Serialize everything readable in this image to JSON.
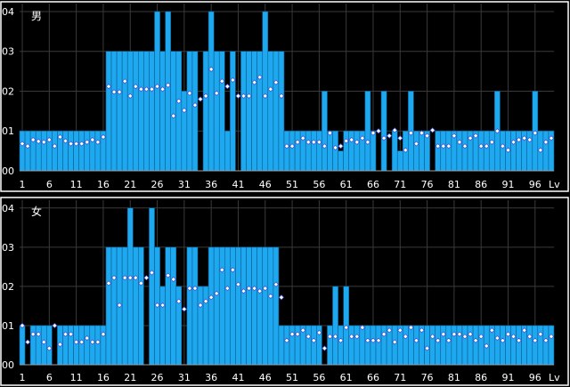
{
  "chart_data": [
    {
      "type": "bar",
      "title": "男",
      "x": [
        1,
        2,
        3,
        4,
        5,
        6,
        7,
        8,
        9,
        10,
        11,
        12,
        13,
        14,
        15,
        16,
        17,
        18,
        19,
        20,
        21,
        22,
        23,
        24,
        25,
        26,
        27,
        28,
        29,
        30,
        31,
        32,
        33,
        34,
        35,
        36,
        37,
        38,
        39,
        40,
        41,
        42,
        43,
        44,
        45,
        46,
        47,
        48,
        49,
        50,
        51,
        52,
        53,
        54,
        55,
        56,
        57,
        58,
        59,
        60,
        61,
        62,
        63,
        64,
        65,
        66,
        67,
        68,
        69,
        70,
        71,
        72,
        73,
        74,
        75,
        76,
        77,
        78,
        79,
        80,
        81,
        82,
        83,
        84,
        85,
        86,
        87,
        88,
        89,
        90,
        91,
        92,
        93,
        94,
        95,
        96,
        97,
        98,
        99
      ],
      "x_ticks": [
        1,
        6,
        11,
        16,
        21,
        26,
        31,
        36,
        41,
        46,
        51,
        56,
        61,
        66,
        71,
        76,
        81,
        86,
        91,
        96
      ],
      "x_unit": "Lv",
      "y_ticks": [
        "00",
        "01",
        "02",
        "03",
        "04"
      ],
      "ylim": [
        0,
        4.2
      ],
      "bar_values": [
        1,
        1,
        1,
        1,
        1,
        1,
        1,
        1,
        1,
        1,
        1,
        1,
        1,
        1,
        1,
        1,
        3,
        3,
        3,
        3,
        3,
        3,
        3,
        3,
        3,
        4,
        3,
        4,
        3,
        3,
        2,
        3,
        3,
        0,
        3,
        4,
        3,
        3,
        1,
        3,
        0,
        3,
        3,
        3,
        3,
        4,
        3,
        3,
        3,
        1,
        1,
        1,
        1,
        1,
        1,
        1,
        2,
        1,
        1,
        0.5,
        1,
        1,
        1,
        1,
        2,
        1,
        0,
        2,
        0,
        1,
        0.5,
        1,
        2,
        1,
        1,
        1,
        0,
        1,
        1,
        1,
        1,
        1,
        1,
        1,
        1,
        1,
        1,
        1,
        2,
        1,
        1,
        1,
        1,
        1,
        1,
        2,
        1,
        1,
        1
      ],
      "point_values": [
        0.68,
        0.62,
        0.78,
        0.74,
        0.72,
        0.78,
        0.62,
        0.85,
        0.75,
        0.68,
        0.68,
        0.68,
        0.72,
        0.78,
        0.72,
        0.85,
        2.12,
        1.98,
        1.98,
        2.25,
        1.88,
        2.12,
        2.05,
        2.05,
        2.05,
        2.12,
        2.05,
        2.15,
        1.38,
        1.75,
        1.52,
        1.95,
        1.65,
        1.8,
        1.88,
        2.55,
        1.95,
        2.25,
        2.12,
        2.28,
        1.88,
        1.88,
        1.88,
        2.22,
        2.35,
        1.88,
        2.05,
        2.22,
        1.88,
        0.62,
        0.62,
        0.72,
        0.82,
        0.72,
        0.72,
        0.72,
        0.62,
        0.95,
        0.58,
        0.62,
        0.75,
        0.78,
        0.72,
        0.82,
        0.72,
        0.95,
        1.0,
        0.82,
        0.88,
        1.02,
        0.82,
        0.52,
        0.95,
        0.68,
        0.95,
        0.88,
        1.02,
        0.62,
        0.62,
        0.62,
        0.88,
        0.72,
        0.62,
        0.82,
        0.88,
        0.62,
        0.62,
        0.72,
        1.0,
        0.62,
        0.52,
        0.72,
        0.78,
        0.82,
        0.78,
        0.95,
        0.52,
        0.72,
        0.82
      ]
    },
    {
      "type": "bar",
      "title": "女",
      "x": [
        1,
        2,
        3,
        4,
        5,
        6,
        7,
        8,
        9,
        10,
        11,
        12,
        13,
        14,
        15,
        16,
        17,
        18,
        19,
        20,
        21,
        22,
        23,
        24,
        25,
        26,
        27,
        28,
        29,
        30,
        31,
        32,
        33,
        34,
        35,
        36,
        37,
        38,
        39,
        40,
        41,
        42,
        43,
        44,
        45,
        46,
        47,
        48,
        49,
        50,
        51,
        52,
        53,
        54,
        55,
        56,
        57,
        58,
        59,
        60,
        61,
        62,
        63,
        64,
        65,
        66,
        67,
        68,
        69,
        70,
        71,
        72,
        73,
        74,
        75,
        76,
        77,
        78,
        79,
        80,
        81,
        82,
        83,
        84,
        85,
        86,
        87,
        88,
        89,
        90,
        91,
        92,
        93,
        94,
        95,
        96,
        97,
        98,
        99
      ],
      "x_ticks": [
        1,
        6,
        11,
        16,
        21,
        26,
        31,
        36,
        41,
        46,
        51,
        56,
        61,
        66,
        71,
        76,
        81,
        86,
        91,
        96
      ],
      "x_unit": "Lv",
      "y_ticks": [
        "00",
        "01",
        "02",
        "03",
        "04"
      ],
      "ylim": [
        0,
        4.2
      ],
      "bar_values": [
        1,
        0,
        1,
        1,
        1,
        1,
        0,
        1,
        1,
        1,
        1,
        1,
        1,
        1,
        1,
        1,
        3,
        3,
        3,
        3,
        4,
        3,
        3,
        0,
        4,
        3,
        2,
        3,
        3,
        2,
        0,
        3,
        3,
        2,
        2,
        3,
        3,
        3,
        3,
        3,
        3,
        3,
        3,
        3,
        3,
        3,
        3,
        3,
        1,
        1,
        1,
        1,
        1,
        1,
        1,
        1,
        0,
        1,
        2,
        1,
        2,
        1,
        1,
        1,
        1,
        1,
        1,
        1,
        1,
        1,
        1,
        1,
        1,
        1,
        1,
        1,
        1,
        1,
        1,
        1,
        1,
        1,
        1,
        1,
        1,
        1,
        1,
        1,
        1,
        1,
        1,
        1,
        1,
        1,
        1,
        1,
        1,
        1,
        1
      ],
      "point_values": [
        1.0,
        0.58,
        0.78,
        0.78,
        0.58,
        0.42,
        1.0,
        0.52,
        0.78,
        0.78,
        0.58,
        0.58,
        0.68,
        0.58,
        0.58,
        0.78,
        2.08,
        2.22,
        1.52,
        2.22,
        2.22,
        2.22,
        2.08,
        2.22,
        2.35,
        1.52,
        1.52,
        2.28,
        2.18,
        1.62,
        1.42,
        1.95,
        1.95,
        1.52,
        1.62,
        1.72,
        1.82,
        2.42,
        1.95,
        2.42,
        2.05,
        1.88,
        1.95,
        1.95,
        1.88,
        1.95,
        1.75,
        2.05,
        1.72,
        0.62,
        0.78,
        0.78,
        0.88,
        0.72,
        0.62,
        0.82,
        0.42,
        0.72,
        0.72,
        0.62,
        0.95,
        0.72,
        0.72,
        0.95,
        0.62,
        0.62,
        0.62,
        0.78,
        0.88,
        0.58,
        0.88,
        0.72,
        0.95,
        0.62,
        0.88,
        0.42,
        0.72,
        0.62,
        0.78,
        0.62,
        0.78,
        0.78,
        0.72,
        0.78,
        0.62,
        0.72,
        0.48,
        0.88,
        0.68,
        0.62,
        0.78,
        0.72,
        0.62,
        0.88,
        0.72,
        0.62,
        0.78,
        0.62,
        0.72
      ]
    }
  ]
}
